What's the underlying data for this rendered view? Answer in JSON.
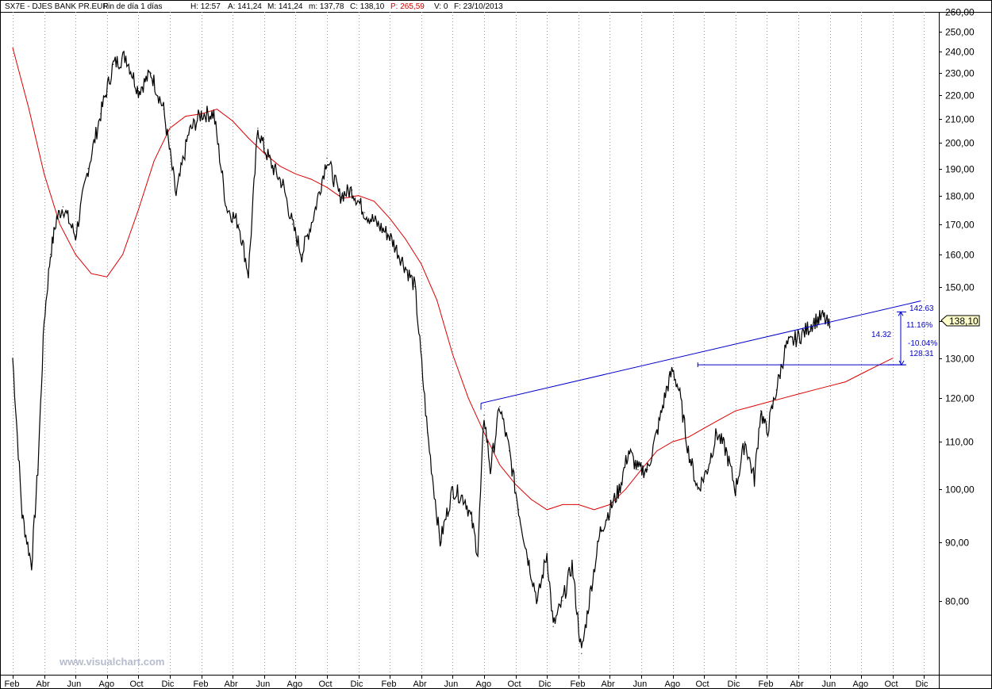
{
  "header": {
    "symbol": "SX7E - DJES BANK PR.EUR",
    "period": "Fin de día 1 días",
    "h": "H: 12:57",
    "a": "A: 141,24",
    "m": "M: 141,24",
    "mlow": "m: 137,78",
    "c": "C: 138,10",
    "p": "P: 265,59",
    "v": "V: 0",
    "f": "F: 23/10/2013"
  },
  "watermark": "www.visualchart.com",
  "colors": {
    "price": "#000000",
    "moving_average": "#dd0000",
    "trendline": "#0000cc",
    "last_price_box": "#ffffcc",
    "grid": "#9a9a9a"
  },
  "last_price_label": "138,10",
  "annotations": {
    "level_high": "142.63",
    "level_low": "128.31",
    "pct_up": "11.16%",
    "pct_down": "-10.04%",
    "diff": "14.32"
  },
  "chart_data": {
    "type": "line",
    "scale": "log",
    "grid": true,
    "ylim": [
      69,
      260
    ],
    "x_ticks": [
      "Feb",
      "Abr",
      "Jun",
      "Ago",
      "Oct",
      "Dic",
      "Feb",
      "Abr",
      "Jun",
      "Ago",
      "Oct",
      "Dic",
      "Feb",
      "Abr",
      "Jun",
      "Ago",
      "Oct",
      "Dic",
      "Feb",
      "Abr",
      "Jun",
      "Ago",
      "Oct",
      "Dic",
      "Feb",
      "Abr",
      "Jun",
      "Ago",
      "Oct",
      "Dic"
    ],
    "y_ticks": [
      "260,00",
      "250,00",
      "240,00",
      "230,00",
      "220,00",
      "210,00",
      "200,00",
      "190,00",
      "180,00",
      "170,00",
      "160,00",
      "150,00",
      "140,00",
      "130,00",
      "120,00",
      "110,00",
      "100,00",
      "90,00",
      "80,00"
    ],
    "y_tick_values": [
      260,
      250,
      240,
      230,
      220,
      210,
      200,
      190,
      180,
      170,
      160,
      150,
      140,
      130,
      120,
      110,
      100,
      90,
      80
    ],
    "series": [
      {
        "type": "price",
        "x": [
          0,
          0.3,
          0.6,
          0.8,
          1.0,
          1.2,
          1.4,
          1.6,
          2.0,
          2.4,
          2.8,
          3.2,
          3.6,
          4.0,
          4.4,
          4.8,
          5.2,
          5.6,
          6.0,
          6.4,
          6.8,
          7.2,
          7.5,
          7.8,
          8.0,
          8.3,
          8.6,
          8.9,
          9.2,
          9.6,
          10.0,
          10.4,
          10.8,
          11.2,
          11.6,
          12.0,
          12.4,
          12.8,
          13.2,
          13.6,
          14.0,
          14.4,
          14.6,
          14.8,
          15.0,
          15.2,
          15.5,
          15.8,
          16.1,
          16.4,
          16.7,
          17.0,
          17.2,
          17.5,
          17.8,
          18.1,
          18.4,
          18.7,
          19.0,
          19.3,
          19.6,
          19.9,
          20.2,
          20.5,
          20.8,
          21.0,
          21.2,
          21.5,
          21.8,
          22.1,
          22.4,
          22.7,
          23.0,
          23.3,
          23.6,
          23.8,
          24.0,
          24.3,
          24.6,
          24.9,
          25.2,
          25.5,
          25.8,
          26.0,
          26.2,
          26.4,
          26.6,
          26.8,
          27.0,
          27.3,
          27.6,
          27.9,
          28.2,
          28.4,
          28.6,
          28.8
        ],
        "y": [
          130,
          95,
          86,
          104,
          140,
          160,
          172,
          176,
          166,
          190,
          212,
          234,
          238,
          222,
          230,
          214,
          180,
          204,
          212,
          212,
          176,
          170,
          154,
          206,
          198,
          190,
          184,
          170,
          160,
          174,
          194,
          180,
          182,
          174,
          170,
          166,
          158,
          150,
          112,
          90,
          100,
          98,
          94,
          88,
          116,
          104,
          118,
          108,
          96,
          87,
          80,
          88,
          76,
          80,
          86,
          72,
          82,
          92,
          96,
          100,
          108,
          104,
          104,
          112,
          122,
          127,
          122,
          108,
          100,
          104,
          112,
          108,
          100,
          110,
          102,
          117,
          112,
          122,
          133,
          135,
          137,
          140,
          141.24,
          138.1,
          138.1,
          138.1,
          138.1,
          138.1,
          138.1,
          138.1,
          138.1,
          138.1,
          138.1,
          138.1,
          138.1,
          138.1
        ]
      },
      {
        "type": "moving_average",
        "x": [
          0,
          0.5,
          1.0,
          1.5,
          2.0,
          2.5,
          3.0,
          3.5,
          4.0,
          4.5,
          5.0,
          5.5,
          6.0,
          6.5,
          7.0,
          7.5,
          8.0,
          8.5,
          9.0,
          9.5,
          10.0,
          10.5,
          11.0,
          11.5,
          12.0,
          12.5,
          13.0,
          13.5,
          14.0,
          14.5,
          15.0,
          15.5,
          16.0,
          16.5,
          17.0,
          17.5,
          18.0,
          18.5,
          19.0,
          19.5,
          20.0,
          20.5,
          21.0,
          21.5,
          22.0,
          22.5,
          23.0,
          23.5,
          24.0,
          24.5,
          25.0,
          25.5,
          26.0,
          26.5,
          27.0,
          27.5,
          28.0
        ],
        "y": [
          242,
          215,
          188,
          170,
          160,
          154,
          153,
          160,
          175,
          193,
          206,
          211,
          212,
          214,
          209,
          202,
          196,
          191,
          188,
          186,
          183,
          179,
          180,
          178,
          172,
          165,
          157,
          146,
          131,
          120,
          112,
          105,
          101,
          98,
          96,
          97,
          97,
          96,
          97,
          100,
          104,
          108,
          110,
          111,
          113,
          115,
          117,
          118,
          119,
          120,
          121,
          122,
          123,
          124,
          126,
          128,
          130
        ]
      },
      {
        "type": "trendline",
        "x": [
          14.9,
          28.9
        ],
        "y": [
          118.8,
          145.8
        ]
      },
      {
        "type": "horizontal_level",
        "x": [
          21.8,
          28.4
        ],
        "y": [
          128.31,
          128.31
        ]
      }
    ]
  }
}
